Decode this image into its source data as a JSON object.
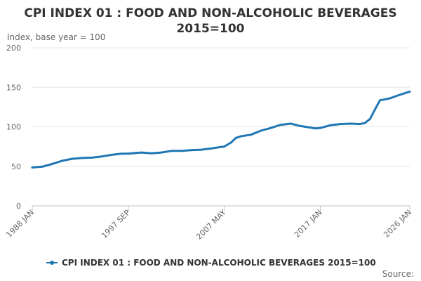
{
  "chart_data": {
    "type": "line",
    "title_lines": [
      "CPI INDEX 01 : FOOD AND NON-ALCOHOLIC BEVERAGES",
      "2015=100"
    ],
    "ylabel": "Index, base year = 100",
    "ylim": [
      0,
      200
    ],
    "y_ticks": [
      0,
      50,
      100,
      150,
      200
    ],
    "x_ticks": [
      {
        "label": "1988 JAN",
        "t": 1988.0
      },
      {
        "label": "1997 SEP",
        "t": 1997.67
      },
      {
        "label": "2007 MAY",
        "t": 2007.33
      },
      {
        "label": "2017 JAN",
        "t": 2017.0
      },
      {
        "label": "2026 JAN",
        "t": 2026.0
      }
    ],
    "xlim": [
      1988.0,
      2026.0
    ],
    "grid": true,
    "legend_position": "bottom",
    "series": [
      {
        "name": "CPI INDEX 01 : FOOD AND NON-ALCOHOLIC BEVERAGES 2015=100",
        "color": "#1f77b4",
        "points": [
          [
            1988.0,
            48.5
          ],
          [
            1989.0,
            49.5
          ],
          [
            1990.0,
            53.0
          ],
          [
            1991.0,
            57.0
          ],
          [
            1992.0,
            59.5
          ],
          [
            1993.0,
            60.5
          ],
          [
            1994.0,
            61.0
          ],
          [
            1995.0,
            62.5
          ],
          [
            1996.0,
            64.5
          ],
          [
            1997.0,
            66.0
          ],
          [
            1997.67,
            66.0
          ],
          [
            1998.0,
            66.5
          ],
          [
            1999.0,
            67.5
          ],
          [
            2000.0,
            66.5
          ],
          [
            2001.0,
            67.5
          ],
          [
            2002.0,
            69.5
          ],
          [
            2003.0,
            69.5
          ],
          [
            2004.0,
            70.5
          ],
          [
            2005.0,
            71.0
          ],
          [
            2006.0,
            72.5
          ],
          [
            2007.0,
            74.5
          ],
          [
            2007.33,
            75.0
          ],
          [
            2008.0,
            80.0
          ],
          [
            2008.5,
            86.0
          ],
          [
            2009.0,
            88.0
          ],
          [
            2010.0,
            90.0
          ],
          [
            2011.0,
            95.0
          ],
          [
            2012.0,
            98.5
          ],
          [
            2013.0,
            102.5
          ],
          [
            2014.0,
            104.0
          ],
          [
            2014.5,
            102.5
          ],
          [
            2015.0,
            101.0
          ],
          [
            2016.0,
            99.0
          ],
          [
            2016.5,
            98.0
          ],
          [
            2017.0,
            98.5
          ],
          [
            2018.0,
            102.0
          ],
          [
            2019.0,
            103.5
          ],
          [
            2020.0,
            104.0
          ],
          [
            2021.0,
            103.5
          ],
          [
            2021.5,
            105.0
          ],
          [
            2022.0,
            110.0
          ],
          [
            2022.5,
            122.0
          ],
          [
            2023.0,
            133.5
          ],
          [
            2024.0,
            136.0
          ],
          [
            2025.0,
            140.5
          ],
          [
            2026.0,
            144.5
          ]
        ]
      }
    ]
  },
  "footer": {
    "source_label": "Source:"
  }
}
